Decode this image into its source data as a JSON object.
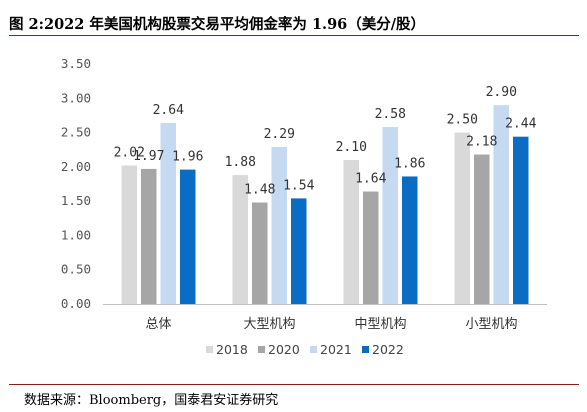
{
  "title": "图 2:2022 年美国机构股票交易平均佣金率为 1.96（美分/股）",
  "source": "数据来源：Bloomberg，国泰君安证券研究",
  "chart_data": {
    "type": "bar",
    "categories": [
      "总体",
      "大型机构",
      "中型机构",
      "小型机构"
    ],
    "series": [
      {
        "name": "2018",
        "values": [
          2.02,
          1.88,
          2.1,
          2.5
        ],
        "color": "#d9d9d9"
      },
      {
        "name": "2020",
        "values": [
          1.97,
          1.48,
          1.64,
          2.18
        ],
        "color": "#a6a6a6"
      },
      {
        "name": "2021",
        "values": [
          2.64,
          2.29,
          2.58,
          2.9
        ],
        "color": "#c5d9f1"
      },
      {
        "name": "2022",
        "values": [
          1.96,
          1.54,
          1.86,
          2.44
        ],
        "color": "#0b6cc4"
      }
    ],
    "ylim": [
      0,
      3.5
    ],
    "yticks": [
      "0.00",
      "0.50",
      "1.00",
      "1.50",
      "2.00",
      "2.50",
      "3.00",
      "3.50"
    ],
    "grid": false,
    "legend_position": "bottom"
  }
}
